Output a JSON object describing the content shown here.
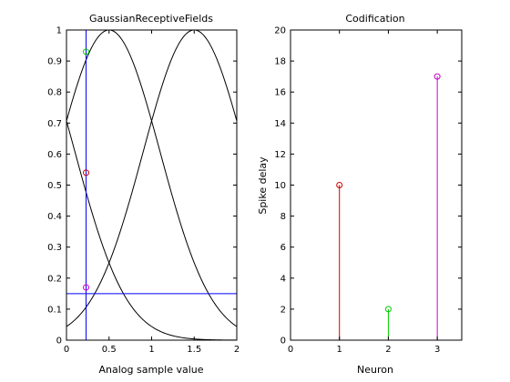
{
  "chart_data": [
    {
      "type": "line",
      "title": "GaussianReceptiveFields",
      "xlabel": "Analog sample value",
      "ylabel": "",
      "xlim": [
        0,
        2
      ],
      "ylim": [
        0,
        1
      ],
      "xticks": [
        0,
        0.5,
        1,
        1.5,
        2
      ],
      "xtick_labels": [
        "0",
        "0.5",
        "1",
        "1.5",
        "2"
      ],
      "yticks": [
        0,
        0.1,
        0.2,
        0.3,
        0.4,
        0.5,
        0.6,
        0.7,
        0.8,
        0.9,
        1
      ],
      "ytick_labels": [
        "0",
        "0.1",
        "0.2",
        "0.3",
        "0.4",
        "0.5",
        "0.6",
        "0.7",
        "0.8",
        "0.9",
        "1"
      ],
      "grid": false,
      "curves": [
        {
          "kind": "gaussian",
          "center": -0.5,
          "sigma": 0.6,
          "color": "#000000"
        },
        {
          "kind": "gaussian",
          "center": 0.5,
          "sigma": 0.6,
          "color": "#000000"
        },
        {
          "kind": "gaussian",
          "center": 1.5,
          "sigma": 0.6,
          "color": "#000000"
        }
      ],
      "vline": {
        "x": 0.23,
        "color": "#0000ff"
      },
      "hline": {
        "y": 0.15,
        "color": "#0000ff"
      },
      "markers": [
        {
          "x": 0.23,
          "y": 0.93,
          "color": "#00cc00"
        },
        {
          "x": 0.23,
          "y": 0.54,
          "color": "#cc0000"
        },
        {
          "x": 0.23,
          "y": 0.17,
          "color": "#cc00cc"
        }
      ]
    },
    {
      "type": "stem",
      "title": "Codification",
      "xlabel": "Neuron",
      "ylabel": "Spike delay",
      "xlim": [
        0,
        3.5
      ],
      "ylim": [
        0,
        20
      ],
      "xticks": [
        0,
        1,
        2,
        3
      ],
      "xtick_labels": [
        "0",
        "1",
        "2",
        "3"
      ],
      "yticks": [
        0,
        2,
        4,
        6,
        8,
        10,
        12,
        14,
        16,
        18,
        20
      ],
      "ytick_labels": [
        "0",
        "2",
        "4",
        "6",
        "8",
        "10",
        "12",
        "14",
        "16",
        "18",
        "20"
      ],
      "grid": false,
      "x": [
        1,
        2,
        3
      ],
      "values": [
        10,
        2,
        17
      ],
      "colors": [
        "#cc0000",
        "#00cc00",
        "#cc00cc"
      ]
    }
  ]
}
